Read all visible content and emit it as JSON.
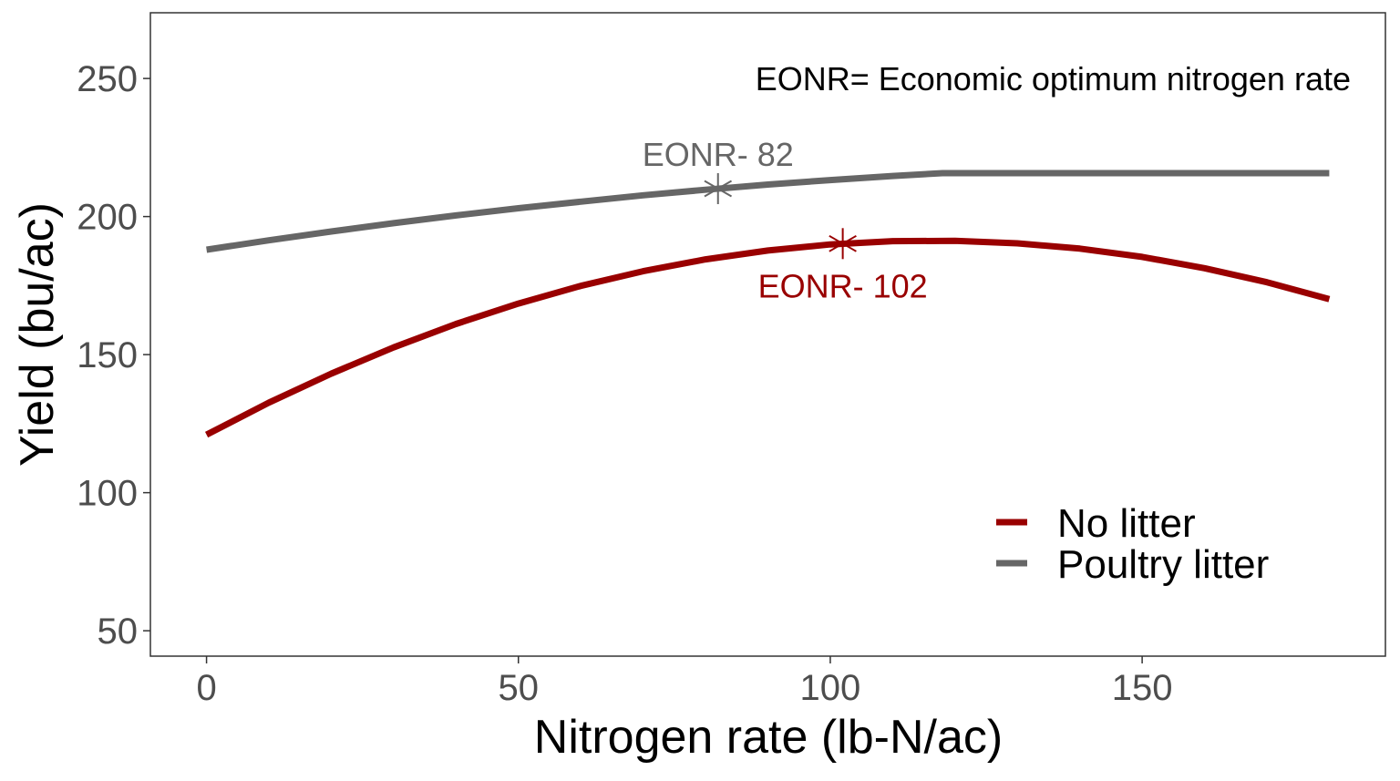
{
  "chart_data": {
    "type": "line",
    "title": "",
    "xlabel": "Nitrogen rate (lb-N/ac)",
    "ylabel": "Yield (bu/ac)",
    "xlim": [
      -9,
      189
    ],
    "ylim": [
      40.8,
      273.8
    ],
    "xticks": [
      0,
      50,
      100,
      150
    ],
    "yticks": [
      50,
      100,
      150,
      200,
      250
    ],
    "grid": false,
    "legend_position": "bottom-right",
    "annotation": "EONR= Economic optimum nitrogen rate",
    "series": [
      {
        "name": "No litter",
        "color": "#990000",
        "x": [
          0,
          10,
          20,
          30,
          40,
          50,
          60,
          70,
          80,
          90,
          100,
          110,
          120,
          130,
          140,
          150,
          160,
          170,
          180
        ],
        "y": [
          121.0,
          132.6,
          143.1,
          152.6,
          161.1,
          168.5,
          174.9,
          180.2,
          184.5,
          187.7,
          189.9,
          191.1,
          191.2,
          190.3,
          188.4,
          185.4,
          181.3,
          176.2,
          170.1
        ],
        "eonr": {
          "x": 102,
          "y": 190.2,
          "label": "EONR- 102"
        }
      },
      {
        "name": "Poultry litter",
        "color": "#666666",
        "x": [
          0,
          10,
          20,
          30,
          40,
          50,
          60,
          70,
          80,
          90,
          100,
          110,
          118,
          130,
          140,
          150,
          160,
          170,
          180
        ],
        "y": [
          188.0,
          191.4,
          194.6,
          197.6,
          200.4,
          203.0,
          205.4,
          207.7,
          209.7,
          211.6,
          213.2,
          214.7,
          215.7,
          215.7,
          215.7,
          215.7,
          215.7,
          215.7,
          215.7
        ],
        "eonr": {
          "x": 82,
          "y": 210.1,
          "label": "EONR- 82"
        }
      }
    ]
  }
}
